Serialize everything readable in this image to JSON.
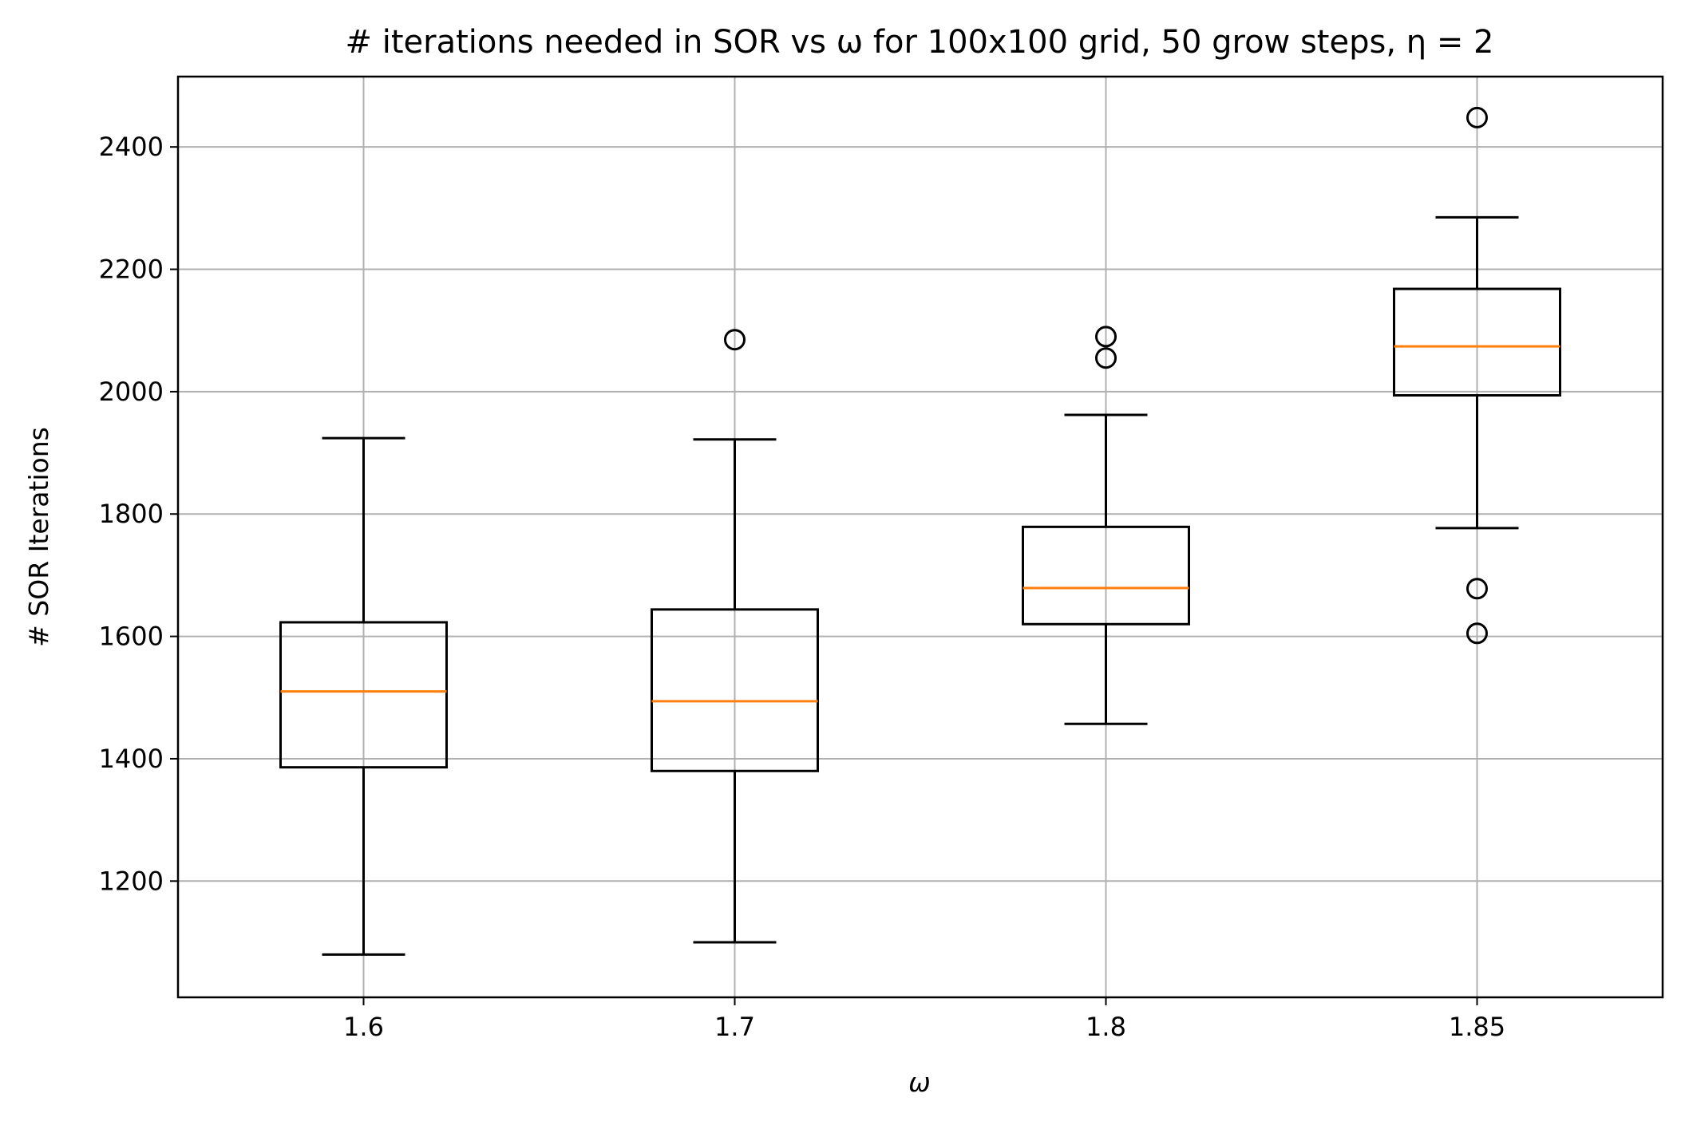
{
  "chart_data": {
    "type": "box",
    "title": "# iterations needed in SOR vs ω for 100x100 grid, 50 grow steps, η = 2",
    "xlabel": "ω",
    "ylabel": "# SOR Iterations",
    "categories": [
      "1.6",
      "1.7",
      "1.8",
      "1.85"
    ],
    "ylim": [
      1010,
      2515
    ],
    "yticks": [
      1200,
      1400,
      1600,
      1800,
      2000,
      2200,
      2400
    ],
    "grid": true,
    "colors": {
      "box": "#000000",
      "median": "#ff7f0e",
      "grid": "#b0b0b0",
      "flier": "#000000"
    },
    "boxes": [
      {
        "category": "1.6",
        "whisker_low": 1080,
        "q1": 1386,
        "median": 1510,
        "q3": 1623,
        "whisker_high": 1924,
        "outliers": []
      },
      {
        "category": "1.7",
        "whisker_low": 1100,
        "q1": 1380,
        "median": 1494,
        "q3": 1644,
        "whisker_high": 1922,
        "outliers": [
          2085
        ]
      },
      {
        "category": "1.8",
        "whisker_low": 1457,
        "q1": 1620,
        "median": 1679,
        "q3": 1779,
        "whisker_high": 1962,
        "outliers": [
          2055,
          2090
        ]
      },
      {
        "category": "1.85",
        "whisker_low": 1777,
        "q1": 1994,
        "median": 2074,
        "q3": 2168,
        "whisker_high": 2285,
        "outliers": [
          1605,
          1678,
          2448
        ]
      }
    ]
  }
}
